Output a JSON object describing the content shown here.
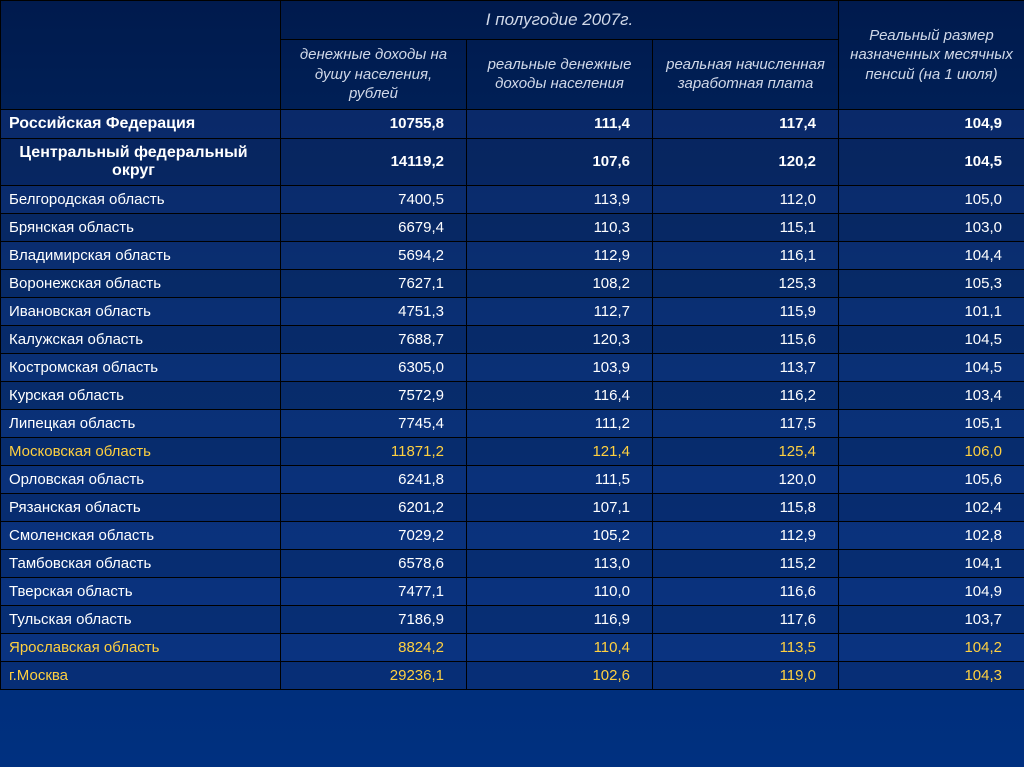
{
  "header": {
    "super_col1": "I полугодие 2007г.",
    "super_col2": "Реальный размер назначенных месячных пенсий (на 1 июля)",
    "col1": "денежные доходы на душу населения, рублей",
    "col2": "реальные денежные доходы населения",
    "col3": "реальная начисленная заработная плата"
  },
  "rows": [
    {
      "label": "Российская Федерация",
      "c1": "10755,8",
      "c2": "111,4",
      "c3": "117,4",
      "c4": "104,9",
      "bold": true,
      "highlight": false,
      "center": false
    },
    {
      "label": "Центральный федеральный округ",
      "c1": "14119,2",
      "c2": "107,6",
      "c3": "120,2",
      "c4": "104,5",
      "bold": true,
      "highlight": false,
      "center": true
    },
    {
      "label": "Белгородская область",
      "c1": "7400,5",
      "c2": "113,9",
      "c3": "112,0",
      "c4": "105,0",
      "bold": false,
      "highlight": false,
      "center": false
    },
    {
      "label": "Брянская область",
      "c1": "6679,4",
      "c2": "110,3",
      "c3": "115,1",
      "c4": "103,0",
      "bold": false,
      "highlight": false,
      "center": false
    },
    {
      "label": "Владимирская область",
      "c1": "5694,2",
      "c2": "112,9",
      "c3": "116,1",
      "c4": "104,4",
      "bold": false,
      "highlight": false,
      "center": false
    },
    {
      "label": "Воронежская область",
      "c1": "7627,1",
      "c2": "108,2",
      "c3": "125,3",
      "c4": "105,3",
      "bold": false,
      "highlight": false,
      "center": false
    },
    {
      "label": "Ивановская область",
      "c1": "4751,3",
      "c2": "112,7",
      "c3": "115,9",
      "c4": "101,1",
      "bold": false,
      "highlight": false,
      "center": false
    },
    {
      "label": "Калужская область",
      "c1": "7688,7",
      "c2": "120,3",
      "c3": "115,6",
      "c4": "104,5",
      "bold": false,
      "highlight": false,
      "center": false
    },
    {
      "label": "Костромская область",
      "c1": "6305,0",
      "c2": "103,9",
      "c3": "113,7",
      "c4": "104,5",
      "bold": false,
      "highlight": false,
      "center": false
    },
    {
      "label": "Курская область",
      "c1": "7572,9",
      "c2": "116,4",
      "c3": "116,2",
      "c4": "103,4",
      "bold": false,
      "highlight": false,
      "center": false
    },
    {
      "label": "Липецкая область",
      "c1": "7745,4",
      "c2": "111,2",
      "c3": "117,5",
      "c4": "105,1",
      "bold": false,
      "highlight": false,
      "center": false
    },
    {
      "label": "Московская область",
      "c1": "11871,2",
      "c2": "121,4",
      "c3": "125,4",
      "c4": "106,0",
      "bold": false,
      "highlight": true,
      "center": false
    },
    {
      "label": "Орловская область",
      "c1": "6241,8",
      "c2": "111,5",
      "c3": "120,0",
      "c4": "105,6",
      "bold": false,
      "highlight": false,
      "center": false
    },
    {
      "label": "Рязанская область",
      "c1": "6201,2",
      "c2": "107,1",
      "c3": "115,8",
      "c4": "102,4",
      "bold": false,
      "highlight": false,
      "center": false
    },
    {
      "label": "Смоленская область",
      "c1": "7029,2",
      "c2": "105,2",
      "c3": "112,9",
      "c4": "102,8",
      "bold": false,
      "highlight": false,
      "center": false
    },
    {
      "label": "Тамбовская область",
      "c1": "6578,6",
      "c2": "113,0",
      "c3": "115,2",
      "c4": "104,1",
      "bold": false,
      "highlight": false,
      "center": false
    },
    {
      "label": "Тверская область",
      "c1": "7477,1",
      "c2": "110,0",
      "c3": "116,6",
      "c4": "104,9",
      "bold": false,
      "highlight": false,
      "center": false
    },
    {
      "label": "Тульская область",
      "c1": "7186,9",
      "c2": "116,9",
      "c3": "117,6",
      "c4": "103,7",
      "bold": false,
      "highlight": false,
      "center": false
    },
    {
      "label": "Ярославская область",
      "c1": "8824,2",
      "c2": "110,4",
      "c3": "113,5",
      "c4": "104,2",
      "bold": false,
      "highlight": true,
      "center": false
    },
    {
      "label": "г.Москва",
      "c1": "29236,1",
      "c2": "102,6",
      "c3": "119,0",
      "c4": "104,3",
      "bold": false,
      "highlight": true,
      "center": false
    }
  ]
}
